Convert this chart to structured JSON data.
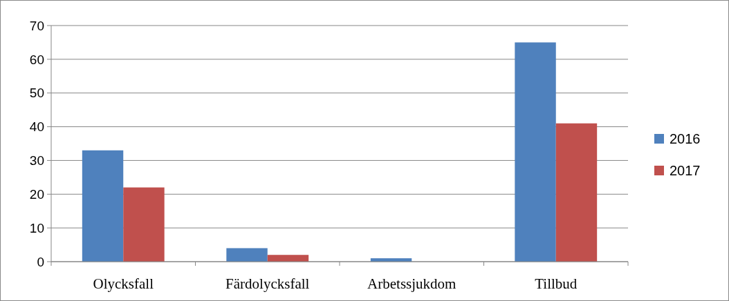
{
  "chart_data": {
    "type": "bar",
    "categories": [
      "Olycksfall",
      "Färdolycksfall",
      "Arbetssjukdom",
      "Tillbud"
    ],
    "series": [
      {
        "name": "2016",
        "color": "#4f81bd",
        "values": [
          33,
          4,
          1,
          65
        ]
      },
      {
        "name": "2017",
        "color": "#c0504d",
        "values": [
          22,
          2,
          0,
          41
        ]
      }
    ],
    "ylim": [
      0,
      70
    ],
    "yticks": [
      0,
      10,
      20,
      30,
      40,
      50,
      60,
      70
    ],
    "grid": "y",
    "legend": "right"
  }
}
